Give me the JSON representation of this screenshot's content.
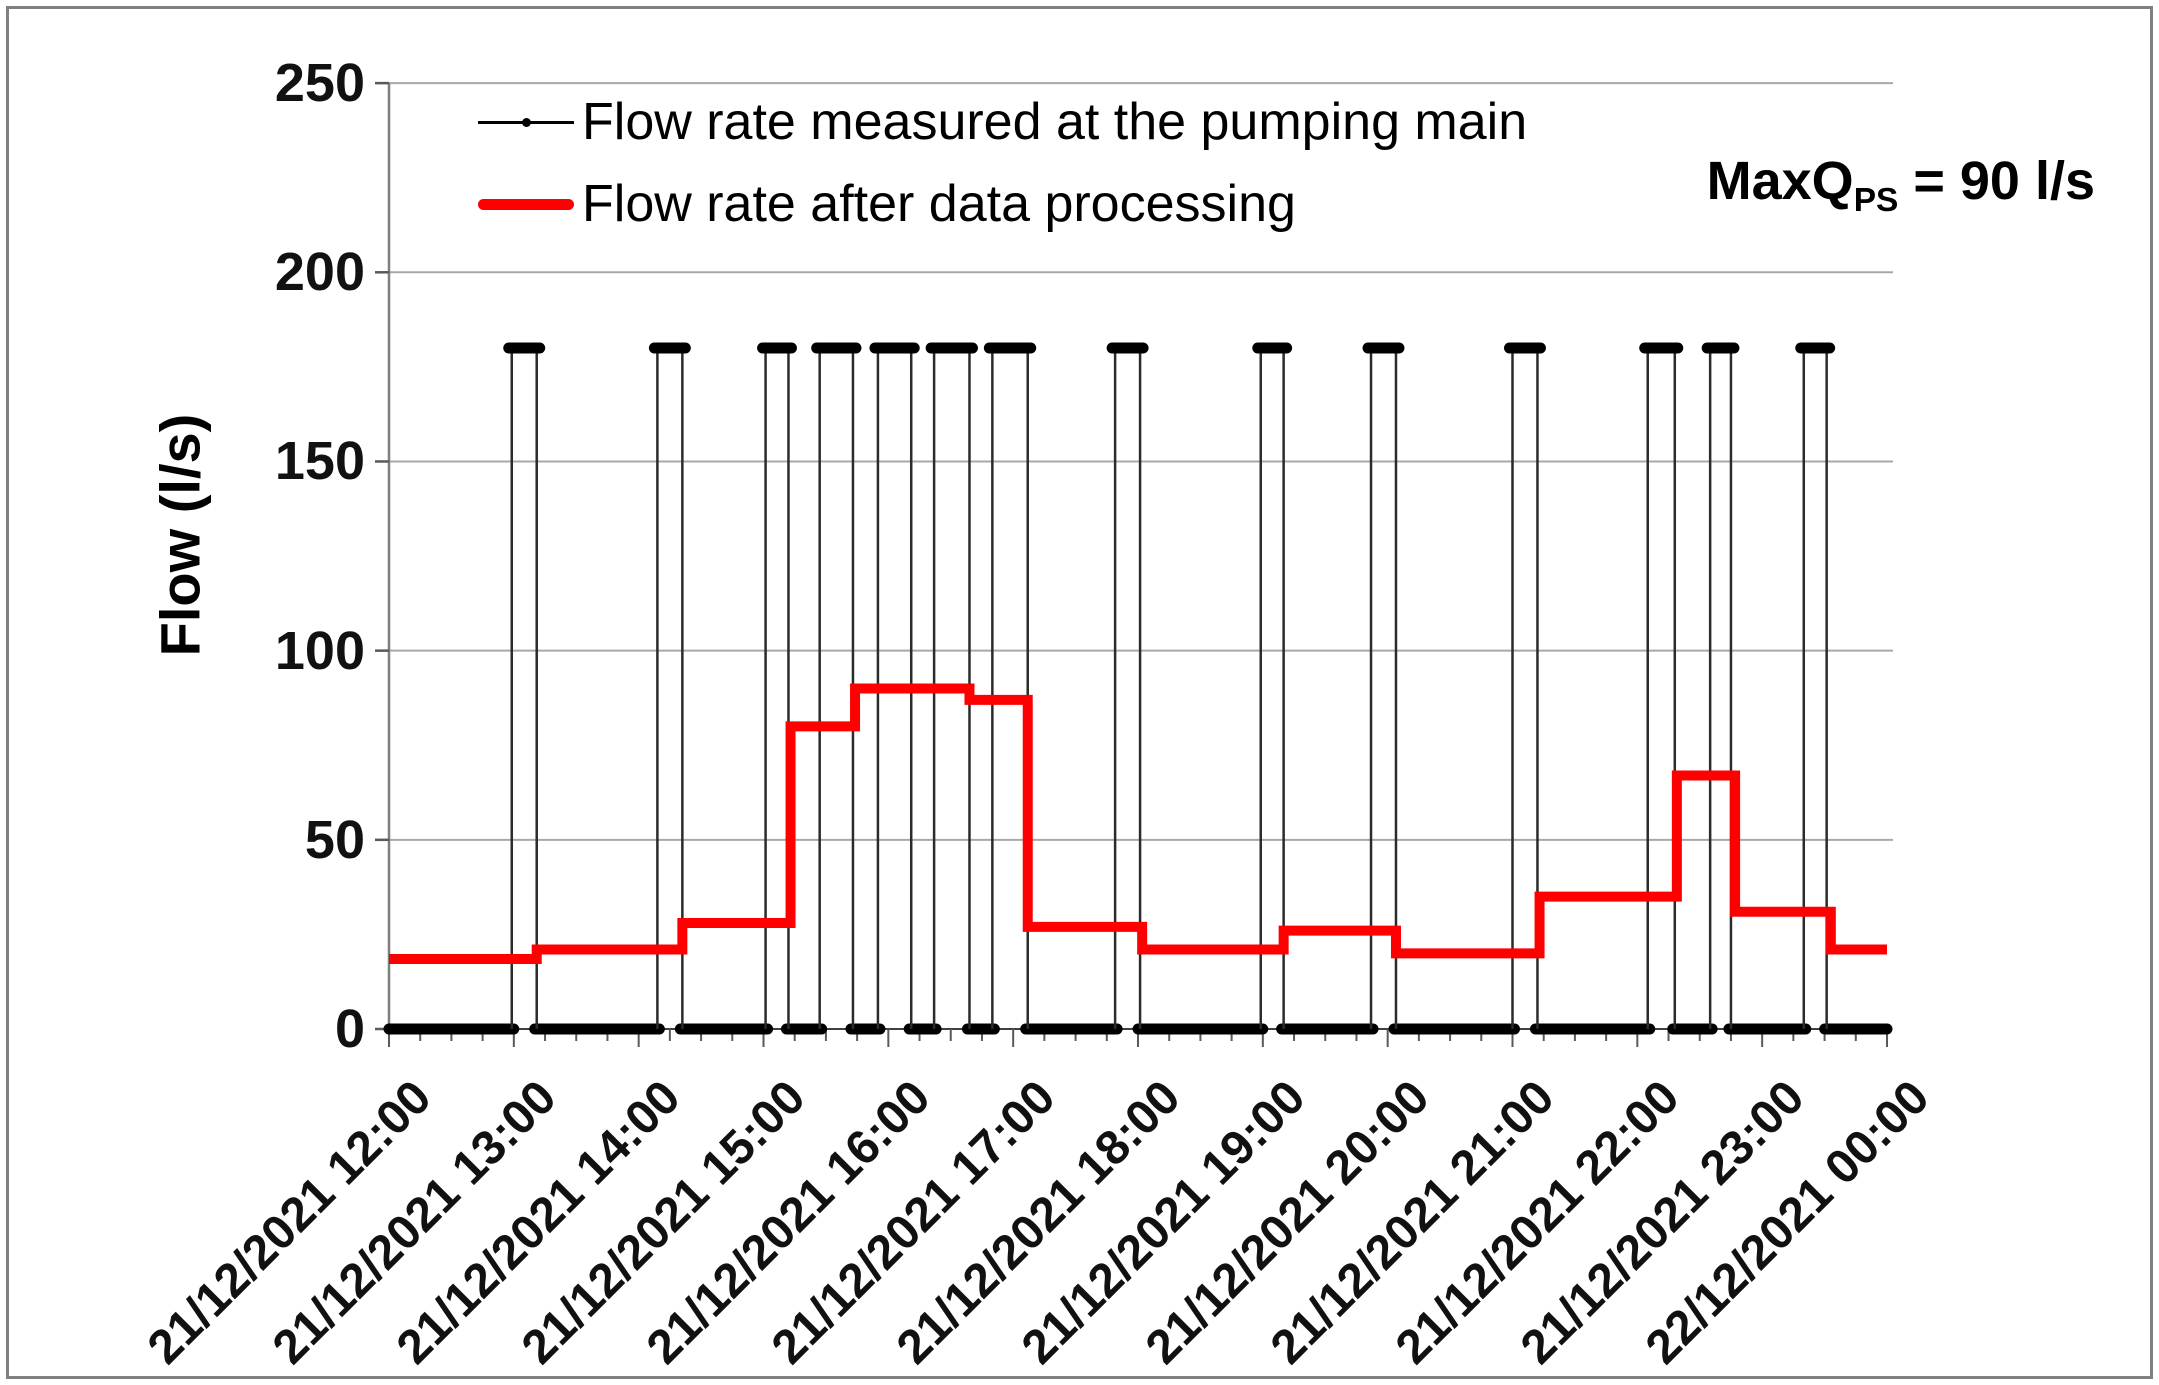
{
  "chart_data": {
    "type": "line",
    "title": "",
    "grid": "horizontal",
    "legend_position": "top-left-inside",
    "x_axis": {
      "labels": [
        "21/12/2021 12:00",
        "21/12/2021 13:00",
        "21/12/2021 14:00",
        "21/12/2021 15:00",
        "21/12/2021 16:00",
        "21/12/2021 17:00",
        "21/12/2021 18:00",
        "21/12/2021 19:00",
        "21/12/2021 20:00",
        "21/12/2021 21:00",
        "21/12/2021 22:00",
        "21/12/2021 23:00",
        "22/12/2021 00:00"
      ],
      "minor_tick_minutes": 15
    },
    "y_axis": {
      "title": "Flow (l/s)",
      "ticks": [
        0,
        50,
        100,
        150,
        200,
        250
      ],
      "range": [
        0,
        250
      ],
      "unit": "l/s"
    },
    "series": [
      {
        "name": "Flow rate measured at the pumping main",
        "color": "#000000",
        "style": "thin line with small round markers; baseline at 0 with rectangular on/off pulses",
        "baseline_value": 0,
        "pulse_value": 180,
        "pulses": [
          {
            "on": "12:59",
            "off": "13:11"
          },
          {
            "on": "14:09",
            "off": "14:21"
          },
          {
            "on": "15:01",
            "off": "15:12"
          },
          {
            "on": "15:27",
            "off": "15:43"
          },
          {
            "on": "15:55",
            "off": "16:11"
          },
          {
            "on": "16:22",
            "off": "16:39"
          },
          {
            "on": "16:50",
            "off": "17:07"
          },
          {
            "on": "17:49",
            "off": "18:01"
          },
          {
            "on": "18:59",
            "off": "19:10"
          },
          {
            "on": "19:52",
            "off": "20:04"
          },
          {
            "on": "21:00",
            "off": "21:12"
          },
          {
            "on": "22:05",
            "off": "22:18"
          },
          {
            "on": "22:35",
            "off": "22:45"
          },
          {
            "on": "23:20",
            "off": "23:31"
          }
        ]
      },
      {
        "name": "Flow rate after data processing",
        "color": "#FF0000",
        "style": "thick step line",
        "segments": [
          {
            "from": "12:00",
            "to": "13:11",
            "value": 18.5
          },
          {
            "from": "13:11",
            "to": "14:21",
            "value": 21
          },
          {
            "from": "14:21",
            "to": "15:13",
            "value": 28
          },
          {
            "from": "15:13",
            "to": "15:44",
            "value": 80
          },
          {
            "from": "15:44",
            "to": "16:39",
            "value": 90
          },
          {
            "from": "16:39",
            "to": "17:07",
            "value": 87
          },
          {
            "from": "17:07",
            "to": "18:02",
            "value": 27
          },
          {
            "from": "18:02",
            "to": "19:10",
            "value": 21
          },
          {
            "from": "19:10",
            "to": "20:04",
            "value": 26
          },
          {
            "from": "20:04",
            "to": "21:13",
            "value": 20
          },
          {
            "from": "21:13",
            "to": "22:19",
            "value": 35
          },
          {
            "from": "22:19",
            "to": "22:47",
            "value": 67
          },
          {
            "from": "22:47",
            "to": "23:33",
            "value": 31
          },
          {
            "from": "23:33",
            "to": "00:00",
            "value": 21
          }
        ]
      }
    ],
    "annotation": "MaxQPS = 90 l/s"
  },
  "annotation": {
    "prefix": "MaxQ",
    "sub": "PS",
    "suffix": " = 90 l/s"
  },
  "colors": {
    "gridline": "#a8a8a8",
    "axis": "#7f7f7f",
    "tick": "#595959",
    "series_measured": "#000000",
    "series_processed": "#ff0000",
    "frame_border": "#808080",
    "text": "#111111"
  }
}
